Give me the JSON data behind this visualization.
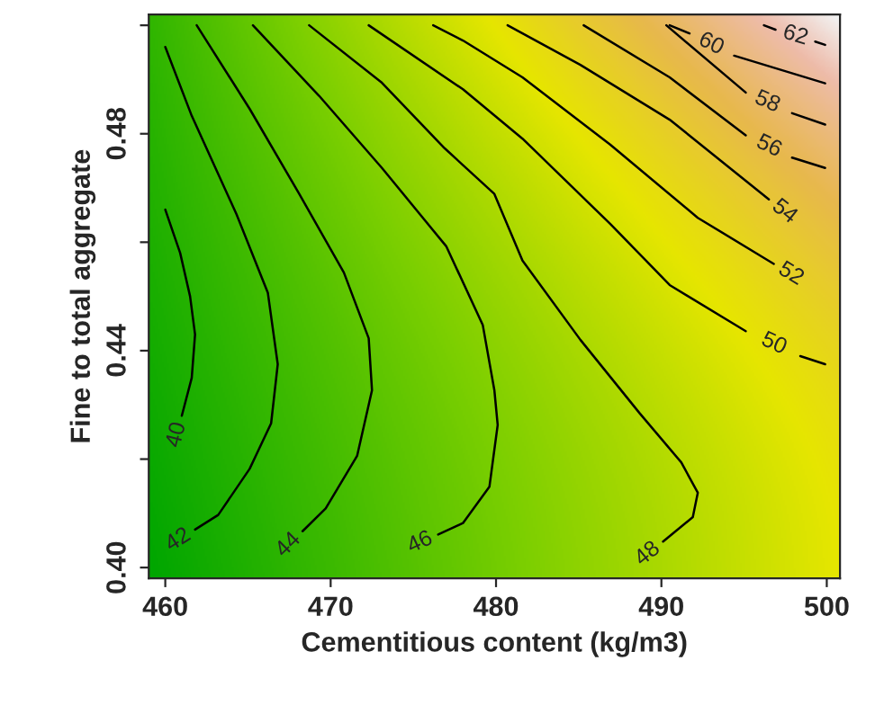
{
  "chart_data": {
    "type": "line",
    "xlabel": "Cementitious content (kg/m3)",
    "ylabel": "Fine to total aggregate",
    "xlim": [
      459.0,
      500.8
    ],
    "xticks": [
      460,
      470,
      480,
      490,
      500
    ],
    "ylim": [
      0.398,
      0.502
    ],
    "yticks": [
      {
        "value": 0.4,
        "label": "0.40"
      },
      {
        "value": 0.42,
        "label": null
      },
      {
        "value": 0.44,
        "label": "0.44"
      },
      {
        "value": 0.46,
        "label": null
      },
      {
        "value": 0.48,
        "label": "0.48"
      },
      {
        "value": 0.5,
        "label": null
      }
    ],
    "line_style": "solid",
    "grid": false,
    "legend": false,
    "series": [
      {
        "name": "40",
        "color": "#000000",
        "x": [
          460.0,
          460.9,
          461.5,
          461.8,
          461.6,
          461.0
        ],
        "values": [
          0.466,
          0.458,
          0.45,
          0.443,
          0.435,
          0.428
        ]
      },
      {
        "name": "42",
        "color": "#000000",
        "x": [
          460.0,
          461.6,
          464.3,
          466.2,
          466.8,
          466.4,
          465.1,
          463.2,
          461.8
        ],
        "values": [
          0.496,
          0.4833,
          0.4652,
          0.4507,
          0.4375,
          0.4266,
          0.4182,
          0.4097,
          0.407
        ]
      },
      {
        "name": "44",
        "color": "#000000",
        "x": [
          461.9,
          465.1,
          468.1,
          470.8,
          472.3,
          472.5,
          471.6,
          469.7,
          468.3
        ],
        "values": [
          0.5,
          0.4846,
          0.4689,
          0.4544,
          0.4423,
          0.4327,
          0.4206,
          0.4109,
          0.4067
        ]
      },
      {
        "name": "46",
        "color": "#000000",
        "x": [
          465.3,
          469.3,
          473.1,
          477.0,
          479.2,
          479.9,
          480.1,
          479.6,
          478.0,
          476.5
        ],
        "values": [
          0.5,
          0.487,
          0.4737,
          0.4592,
          0.4447,
          0.4327,
          0.4263,
          0.4149,
          0.4082,
          0.4061
        ]
      },
      {
        "name": "48",
        "color": "#000000",
        "x": [
          468.7,
          473.1,
          476.9,
          479.9,
          481.6,
          485.1,
          488.7,
          491.2,
          492.2,
          491.9,
          490.1
        ],
        "values": [
          0.5,
          0.4894,
          0.4773,
          0.4689,
          0.4566,
          0.442,
          0.4284,
          0.4194,
          0.4138,
          0.4093,
          0.4048
        ]
      },
      {
        "name": "50",
        "color": "#000000",
        "x": [
          472.3,
          478.0,
          481.6,
          486.9,
          490.5,
          495.1,
          496.8,
          498.4,
          499.9
        ],
        "values": [
          0.5,
          0.4882,
          0.4791,
          0.4634,
          0.4521,
          0.4436,
          null,
          0.439,
          0.4375
        ]
      },
      {
        "name": "52",
        "color": "#000000",
        "x": [
          476.2,
          478.0,
          481.6,
          486.9,
          492.2,
          496.8
        ],
        "values": [
          0.5,
          0.4972,
          0.4904,
          0.478,
          0.4645,
          0.456
        ]
      },
      {
        "name": "54",
        "color": "#000000",
        "x": [
          480.7,
          485.1,
          490.5,
          496.5
        ],
        "values": [
          0.5,
          0.4927,
          0.4826,
          0.4679
        ]
      },
      {
        "name": "56",
        "color": "#000000",
        "x": [
          485.3,
          490.5,
          495.1,
          496.5,
          497.9,
          499.9
        ],
        "values": [
          0.5,
          0.4904,
          0.4797,
          null,
          0.4756,
          0.4737
        ]
      },
      {
        "name": "58",
        "color": "#000000",
        "x": [
          490.3,
          495.1,
          496.4,
          497.9,
          499.9
        ],
        "values": [
          0.5,
          0.4876,
          null,
          0.4838,
          0.4817
        ]
      },
      {
        "name": "60",
        "color": "#000000",
        "x": [
          490.5,
          491.7,
          493.0,
          494.4,
          499.9
        ],
        "values": [
          0.5,
          0.4985,
          null,
          0.4944,
          0.4893
        ]
      },
      {
        "name": "62",
        "color": "#000000",
        "x": [
          496.2,
          496.9,
          498.1,
          499.3,
          499.9
        ],
        "values": [
          0.5,
          0.4992,
          null,
          0.497,
          0.4964
        ]
      }
    ]
  }
}
